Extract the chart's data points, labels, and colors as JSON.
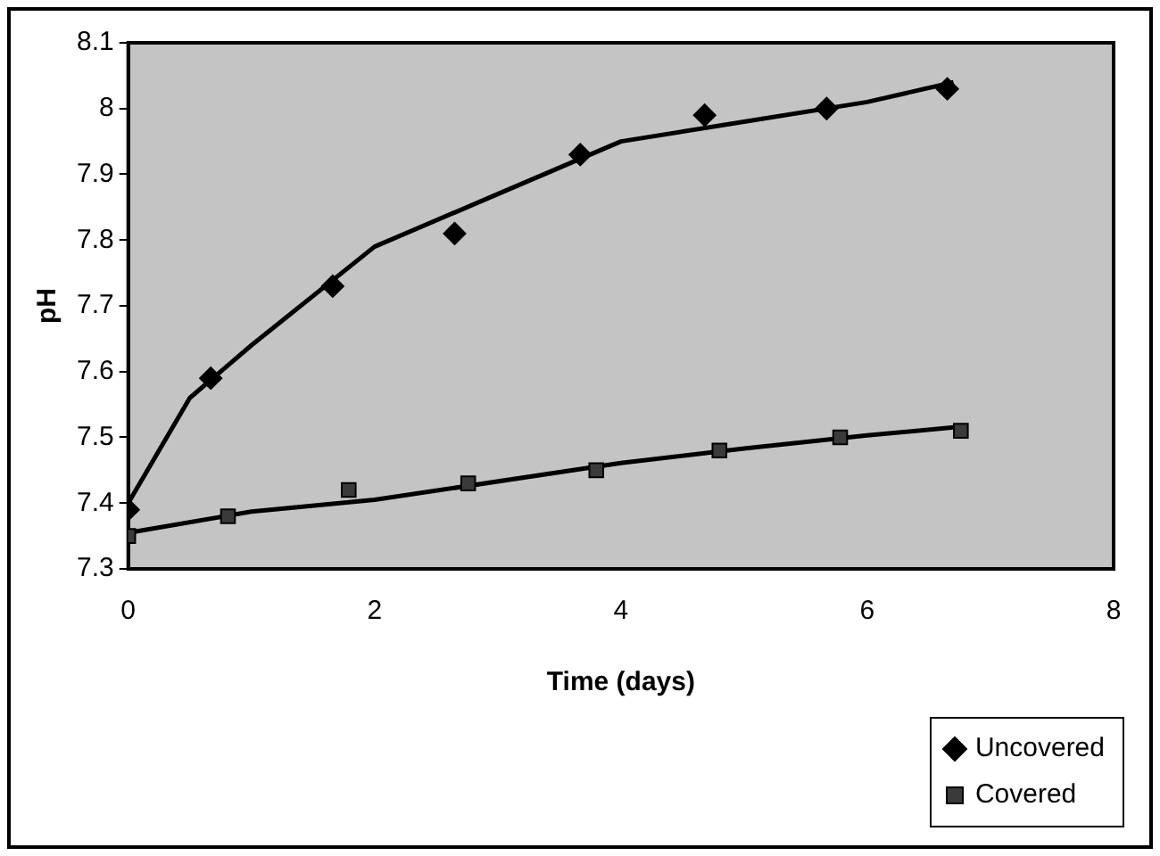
{
  "chart_data": {
    "type": "scatter",
    "xlabel": "Time (days)",
    "ylabel": "pH",
    "xlim": [
      0,
      8
    ],
    "xticks": [
      0,
      2,
      4,
      6,
      8
    ],
    "ylim": [
      7.3,
      8.1
    ],
    "yticks": [
      7.3,
      7.4,
      7.5,
      7.6,
      7.7,
      7.8,
      7.9,
      8,
      8.1
    ],
    "grid": false,
    "legend": "bottom right",
    "series": [
      {
        "name": "Uncovered",
        "color": "#000000",
        "marker": "diamond",
        "x": [
          0,
          0.67,
          1.66,
          2.65,
          3.67,
          4.68,
          5.67,
          6.65
        ],
        "values": [
          7.39,
          7.59,
          7.73,
          7.81,
          7.93,
          7.99,
          8.0,
          8.03
        ]
      },
      {
        "name": "Covered",
        "color": "#3a3a3a",
        "marker": "square",
        "x": [
          0,
          0.81,
          1.79,
          2.76,
          3.8,
          4.8,
          5.78,
          6.76
        ],
        "values": [
          7.35,
          7.38,
          7.42,
          7.43,
          7.45,
          7.48,
          7.5,
          7.51
        ]
      },
      {
        "type": "line",
        "color": "#000000",
        "marker": "none",
        "x": [
          0,
          0.5,
          1,
          2,
          3,
          4,
          5,
          6,
          6.7
        ],
        "values": [
          7.4,
          7.56,
          7.64,
          7.79,
          7.87,
          7.95,
          7.98,
          8.01,
          8.04
        ]
      },
      {
        "type": "line",
        "color": "#000000",
        "marker": "none",
        "x": [
          0,
          1,
          2,
          4,
          5,
          6,
          6.8
        ],
        "values": [
          7.355,
          7.387,
          7.405,
          7.461,
          7.483,
          7.503,
          7.517
        ]
      }
    ]
  }
}
